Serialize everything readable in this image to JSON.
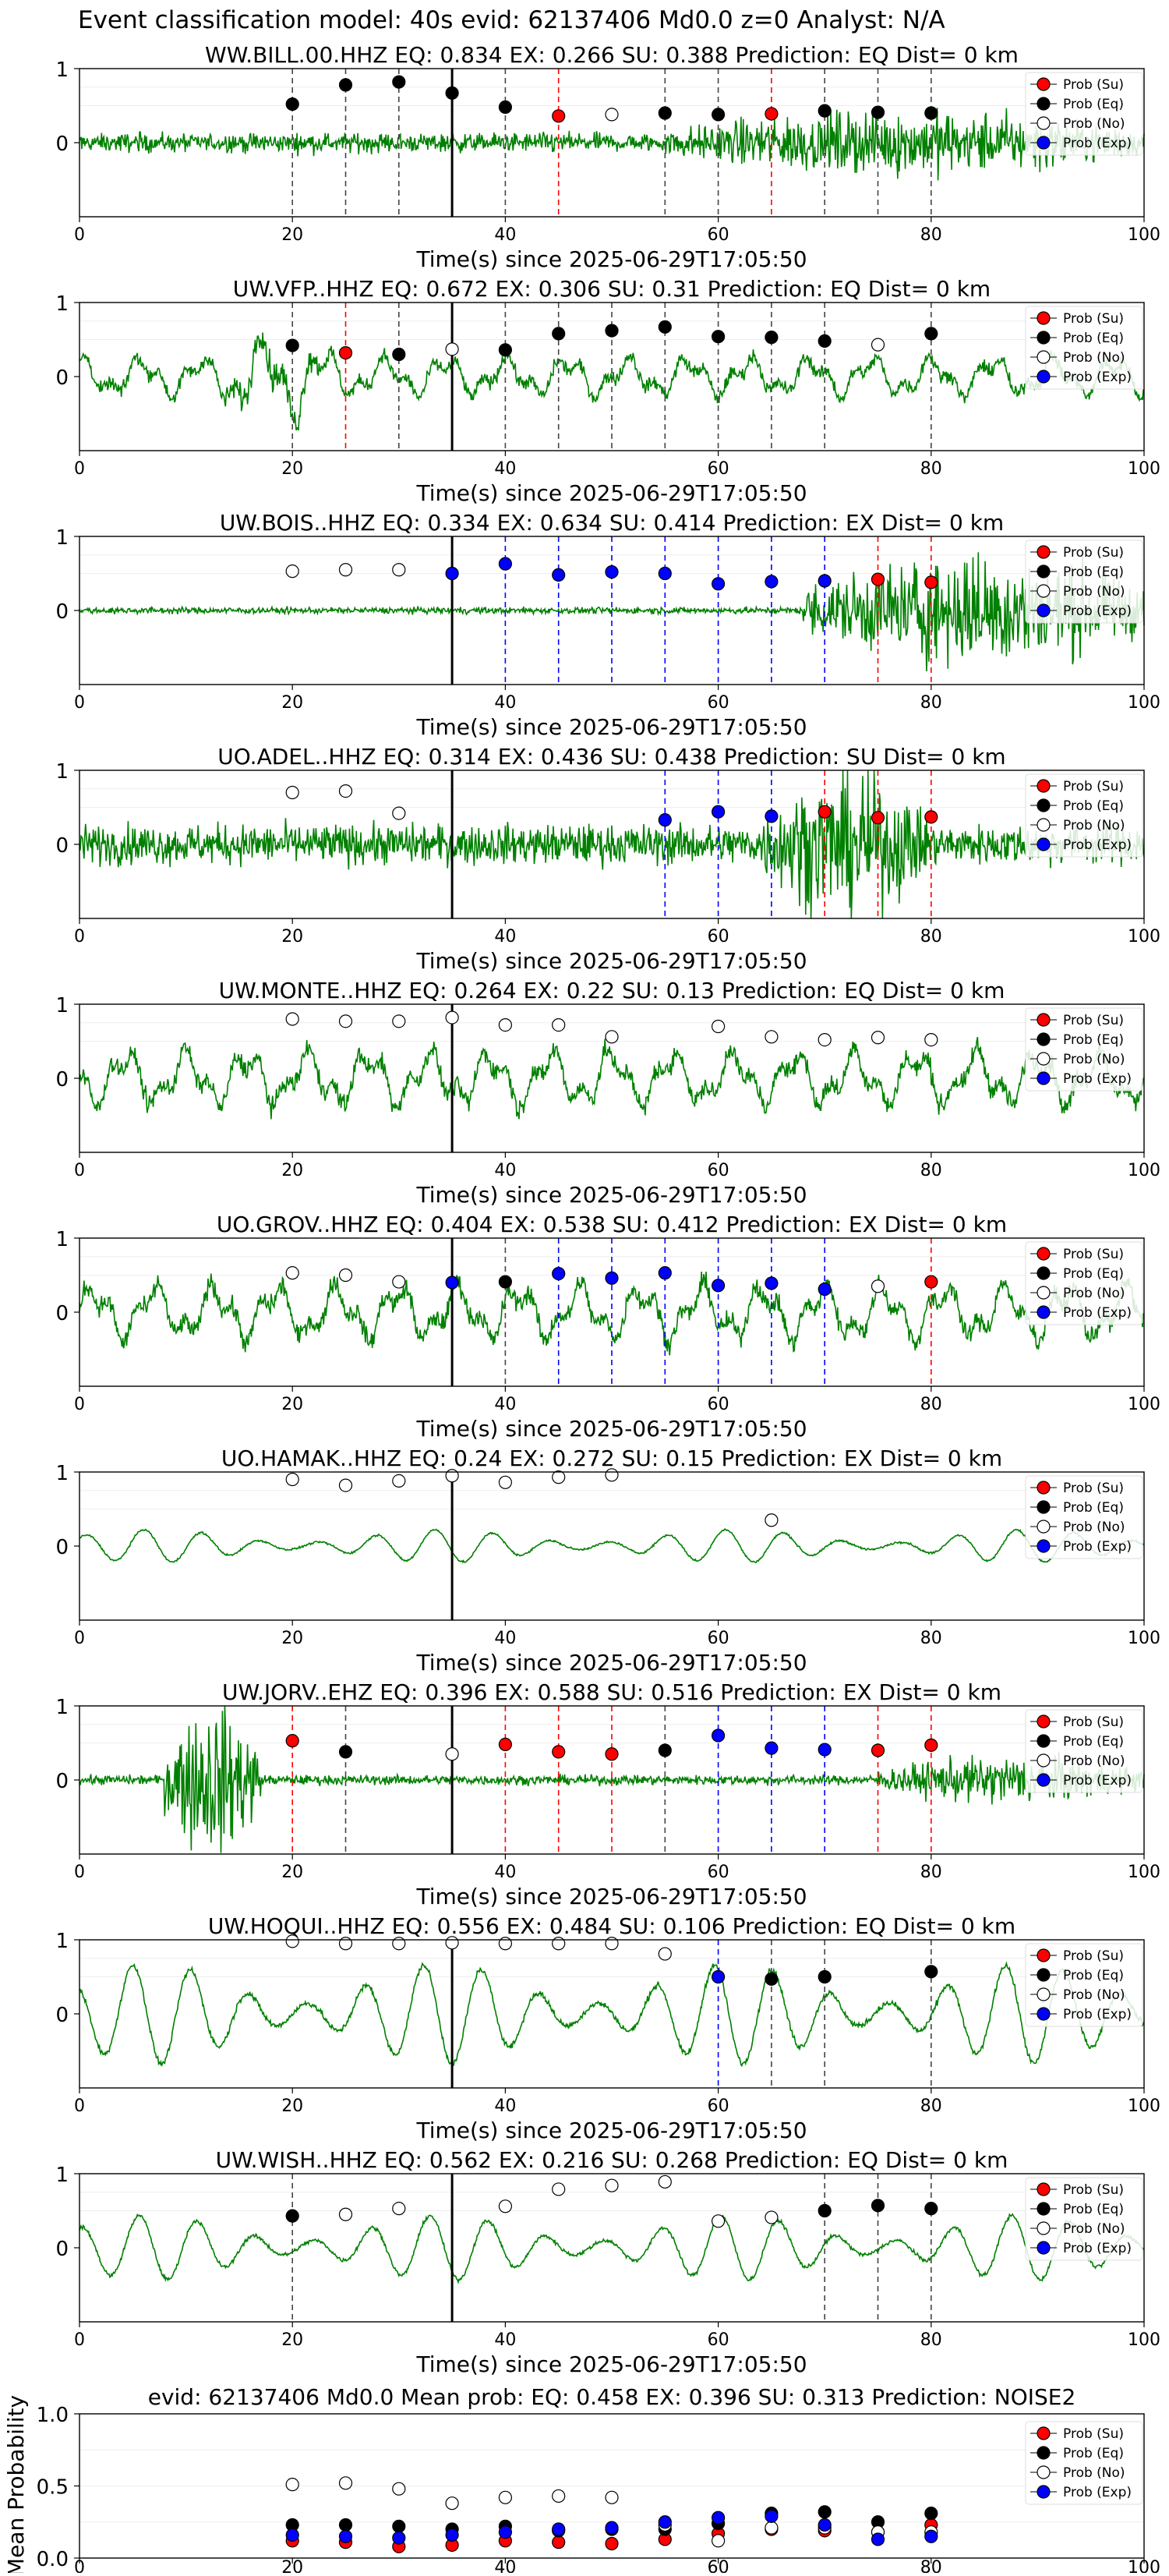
{
  "figure": {
    "suptitle": "Event classification model: 40s evid: 62137406 Md0.0 z=0 Analyst: N/A",
    "xlabel": "Time(s) since 2025-06-29T17:05:50",
    "legend": [
      "Prob (Su)",
      "Prob (Eq)",
      "Prob (No)",
      "Prob (Exp)"
    ],
    "colors": {
      "su": "#ff0000",
      "eq": "#000000",
      "no": "#ffffff",
      "exp": "#0000ff",
      "wave": "#008000",
      "su_line": "#ff0000",
      "eq_line": "#444444",
      "exp_line": "#0000ff"
    }
  },
  "chart_data": [
    {
      "type": "line",
      "station": "WW.BILL.00.HHZ",
      "title": "WW.BILL.00.HHZ   EQ: 0.834  EX: 0.266  SU: 0.388   Prediction: EQ    Dist= 0 km",
      "xlim": [
        0,
        100
      ],
      "ylim": [
        -1,
        1
      ],
      "xticks": [
        0,
        20,
        40,
        60,
        80,
        100
      ],
      "yticks": [
        0,
        1
      ],
      "pick_time": 35,
      "wave": {
        "amp": 0.12,
        "burst": [
          [
            55,
            100,
            0.4
          ]
        ],
        "kind": "noise"
      },
      "points": [
        {
          "t": 20,
          "y": 0.52,
          "cls": "eq"
        },
        {
          "t": 25,
          "y": 0.78,
          "cls": "eq"
        },
        {
          "t": 30,
          "y": 0.82,
          "cls": "eq"
        },
        {
          "t": 35,
          "y": 0.67,
          "cls": "eq"
        },
        {
          "t": 40,
          "y": 0.48,
          "cls": "eq"
        },
        {
          "t": 45,
          "y": 0.36,
          "cls": "su"
        },
        {
          "t": 50,
          "y": 0.38,
          "cls": "no"
        },
        {
          "t": 55,
          "y": 0.4,
          "cls": "eq"
        },
        {
          "t": 60,
          "y": 0.38,
          "cls": "eq"
        },
        {
          "t": 65,
          "y": 0.39,
          "cls": "su"
        },
        {
          "t": 70,
          "y": 0.43,
          "cls": "eq"
        },
        {
          "t": 75,
          "y": 0.41,
          "cls": "eq"
        },
        {
          "t": 80,
          "y": 0.4,
          "cls": "eq"
        }
      ]
    },
    {
      "type": "line",
      "station": "UW.VFP..HHZ",
      "title": "UW.VFP..HHZ   EQ: 0.672  EX: 0.306  SU: 0.31   Prediction: EQ    Dist= 0 km",
      "xlim": [
        0,
        100
      ],
      "ylim": [
        -1,
        1
      ],
      "xticks": [
        0,
        20,
        40,
        60,
        80,
        100
      ],
      "yticks": [
        0,
        1
      ],
      "pick_time": 35,
      "wave": {
        "amp": 0.35,
        "burst": [
          [
            12,
            25,
            0.8
          ]
        ],
        "kind": "osc"
      },
      "points": [
        {
          "t": 20,
          "y": 0.42,
          "cls": "eq"
        },
        {
          "t": 25,
          "y": 0.32,
          "cls": "su"
        },
        {
          "t": 30,
          "y": 0.3,
          "cls": "eq"
        },
        {
          "t": 35,
          "y": 0.37,
          "cls": "no"
        },
        {
          "t": 40,
          "y": 0.36,
          "cls": "eq"
        },
        {
          "t": 45,
          "y": 0.58,
          "cls": "eq"
        },
        {
          "t": 50,
          "y": 0.62,
          "cls": "eq"
        },
        {
          "t": 55,
          "y": 0.67,
          "cls": "eq"
        },
        {
          "t": 60,
          "y": 0.54,
          "cls": "eq"
        },
        {
          "t": 65,
          "y": 0.53,
          "cls": "eq"
        },
        {
          "t": 70,
          "y": 0.48,
          "cls": "eq"
        },
        {
          "t": 75,
          "y": 0.43,
          "cls": "no"
        },
        {
          "t": 80,
          "y": 0.58,
          "cls": "eq"
        }
      ]
    },
    {
      "type": "line",
      "station": "UW.BOIS..HHZ",
      "title": "UW.BOIS..HHZ   EQ: 0.334  EX: 0.634  SU: 0.414   Prediction: EX",
      "dist_label": "Dist= 0 km",
      "xlim": [
        0,
        100
      ],
      "ylim": [
        -1,
        1
      ],
      "xticks": [
        0,
        20,
        40,
        60,
        80,
        100
      ],
      "yticks": [
        0,
        1
      ],
      "pick_time": 35,
      "wave": {
        "amp": 0.04,
        "burst": [
          [
            68,
            100,
            0.7
          ]
        ],
        "kind": "noise"
      },
      "points": [
        {
          "t": 20,
          "y": 0.53,
          "cls": "no"
        },
        {
          "t": 25,
          "y": 0.55,
          "cls": "no"
        },
        {
          "t": 30,
          "y": 0.55,
          "cls": "no"
        },
        {
          "t": 35,
          "y": 0.5,
          "cls": "exp"
        },
        {
          "t": 40,
          "y": 0.63,
          "cls": "exp"
        },
        {
          "t": 45,
          "y": 0.48,
          "cls": "exp"
        },
        {
          "t": 50,
          "y": 0.52,
          "cls": "exp"
        },
        {
          "t": 55,
          "y": 0.5,
          "cls": "exp"
        },
        {
          "t": 60,
          "y": 0.36,
          "cls": "exp"
        },
        {
          "t": 65,
          "y": 0.39,
          "cls": "exp"
        },
        {
          "t": 70,
          "y": 0.4,
          "cls": "exp"
        },
        {
          "t": 75,
          "y": 0.42,
          "cls": "su"
        },
        {
          "t": 80,
          "y": 0.38,
          "cls": "su"
        }
      ]
    },
    {
      "type": "line",
      "station": "UO.ADEL..HHZ",
      "title": "UO.ADEL..HHZ   EQ: 0.314  EX: 0.436  SU: 0.438   Prediction: SU    Dist= 0 km",
      "xlim": [
        0,
        100
      ],
      "ylim": [
        -1,
        1
      ],
      "xticks": [
        0,
        20,
        40,
        60,
        80,
        100
      ],
      "yticks": [
        0,
        1
      ],
      "pick_time": 35,
      "wave": {
        "amp": 0.25,
        "burst": [
          [
            64,
            80,
            0.9
          ]
        ],
        "kind": "noise"
      },
      "points": [
        {
          "t": 20,
          "y": 0.7,
          "cls": "no"
        },
        {
          "t": 25,
          "y": 0.72,
          "cls": "no"
        },
        {
          "t": 30,
          "y": 0.42,
          "cls": "no"
        },
        {
          "t": 55,
          "y": 0.33,
          "cls": "exp"
        },
        {
          "t": 60,
          "y": 0.44,
          "cls": "exp"
        },
        {
          "t": 65,
          "y": 0.38,
          "cls": "exp"
        },
        {
          "t": 70,
          "y": 0.44,
          "cls": "su"
        },
        {
          "t": 75,
          "y": 0.36,
          "cls": "su"
        },
        {
          "t": 80,
          "y": 0.37,
          "cls": "su"
        }
      ]
    },
    {
      "type": "line",
      "station": "UW.MONTE..HHZ",
      "title": "UW.MONTE..HHZ   EQ: 0.264  EX: 0.22  SU: 0.13   Prediction: EQ    Dist= 0 km",
      "xlim": [
        0,
        100
      ],
      "ylim": [
        -1,
        1
      ],
      "xticks": [
        0,
        20,
        40,
        60,
        80,
        100
      ],
      "yticks": [
        0,
        1
      ],
      "pick_time": 35,
      "wave": {
        "amp": 0.5,
        "burst": [],
        "kind": "osc"
      },
      "points": [
        {
          "t": 20,
          "y": 0.8,
          "cls": "no"
        },
        {
          "t": 25,
          "y": 0.77,
          "cls": "no"
        },
        {
          "t": 30,
          "y": 0.77,
          "cls": "no"
        },
        {
          "t": 35,
          "y": 0.82,
          "cls": "no"
        },
        {
          "t": 40,
          "y": 0.72,
          "cls": "no"
        },
        {
          "t": 45,
          "y": 0.72,
          "cls": "no"
        },
        {
          "t": 50,
          "y": 0.56,
          "cls": "no"
        },
        {
          "t": 60,
          "y": 0.7,
          "cls": "no"
        },
        {
          "t": 65,
          "y": 0.56,
          "cls": "no"
        },
        {
          "t": 70,
          "y": 0.52,
          "cls": "no"
        },
        {
          "t": 75,
          "y": 0.55,
          "cls": "no"
        },
        {
          "t": 80,
          "y": 0.52,
          "cls": "no"
        }
      ]
    },
    {
      "type": "line",
      "station": "UO.GROV..HHZ",
      "title": "UO.GROV..HHZ   EQ: 0.404  EX: 0.538  SU: 0.412   Prediction: EX    Dist= 0 km",
      "xlim": [
        0,
        100
      ],
      "ylim": [
        -1,
        1
      ],
      "xticks": [
        0,
        20,
        40,
        60,
        80,
        100
      ],
      "yticks": [
        0,
        1
      ],
      "pick_time": 35,
      "wave": {
        "amp": 0.5,
        "burst": [],
        "kind": "osc"
      },
      "points": [
        {
          "t": 20,
          "y": 0.53,
          "cls": "no"
        },
        {
          "t": 25,
          "y": 0.5,
          "cls": "no"
        },
        {
          "t": 30,
          "y": 0.41,
          "cls": "no"
        },
        {
          "t": 35,
          "y": 0.4,
          "cls": "exp"
        },
        {
          "t": 40,
          "y": 0.41,
          "cls": "eq"
        },
        {
          "t": 45,
          "y": 0.52,
          "cls": "exp"
        },
        {
          "t": 50,
          "y": 0.46,
          "cls": "exp"
        },
        {
          "t": 55,
          "y": 0.53,
          "cls": "exp"
        },
        {
          "t": 60,
          "y": 0.36,
          "cls": "exp"
        },
        {
          "t": 65,
          "y": 0.39,
          "cls": "exp"
        },
        {
          "t": 70,
          "y": 0.31,
          "cls": "exp"
        },
        {
          "t": 75,
          "y": 0.35,
          "cls": "no"
        },
        {
          "t": 80,
          "y": 0.41,
          "cls": "su"
        }
      ]
    },
    {
      "type": "line",
      "station": "UO.HAMAK..HHZ",
      "title": "UO.HAMAK..HHZ   EQ: 0.24  EX: 0.272  SU: 0.15   Prediction: EX    Dist= 0 km",
      "xlim": [
        0,
        100
      ],
      "ylim": [
        -1,
        1
      ],
      "xticks": [
        0,
        20,
        40,
        60,
        80,
        100
      ],
      "yticks": [
        0,
        1
      ],
      "pick_time": 35,
      "wave": {
        "amp": 0.28,
        "burst": [],
        "kind": "smooth"
      },
      "points": [
        {
          "t": 20,
          "y": 0.9,
          "cls": "no"
        },
        {
          "t": 25,
          "y": 0.82,
          "cls": "no"
        },
        {
          "t": 30,
          "y": 0.88,
          "cls": "no"
        },
        {
          "t": 35,
          "y": 0.95,
          "cls": "no"
        },
        {
          "t": 40,
          "y": 0.86,
          "cls": "no"
        },
        {
          "t": 45,
          "y": 0.93,
          "cls": "no"
        },
        {
          "t": 50,
          "y": 0.96,
          "cls": "no"
        },
        {
          "t": 65,
          "y": 0.35,
          "cls": "no"
        }
      ]
    },
    {
      "type": "line",
      "station": "UW.JORV..EHZ",
      "title": "UW.JORV..EHZ   EQ: 0.396  EX: 0.588  SU: 0.516   Prediction: EX    Dist= 0 km",
      "xlim": [
        0,
        100
      ],
      "ylim": [
        -1,
        1
      ],
      "xticks": [
        0,
        20,
        40,
        60,
        80,
        100
      ],
      "yticks": [
        0,
        1
      ],
      "pick_time": 35,
      "wave": {
        "amp": 0.06,
        "burst": [
          [
            8,
            17,
            0.95
          ],
          [
            75,
            100,
            0.3
          ]
        ],
        "kind": "noise"
      },
      "points": [
        {
          "t": 20,
          "y": 0.53,
          "cls": "su"
        },
        {
          "t": 25,
          "y": 0.38,
          "cls": "eq"
        },
        {
          "t": 35,
          "y": 0.35,
          "cls": "no"
        },
        {
          "t": 40,
          "y": 0.48,
          "cls": "su"
        },
        {
          "t": 45,
          "y": 0.38,
          "cls": "su"
        },
        {
          "t": 50,
          "y": 0.35,
          "cls": "su"
        },
        {
          "t": 55,
          "y": 0.4,
          "cls": "eq"
        },
        {
          "t": 60,
          "y": 0.6,
          "cls": "exp"
        },
        {
          "t": 65,
          "y": 0.43,
          "cls": "exp"
        },
        {
          "t": 70,
          "y": 0.41,
          "cls": "exp"
        },
        {
          "t": 75,
          "y": 0.4,
          "cls": "su"
        },
        {
          "t": 80,
          "y": 0.47,
          "cls": "su"
        }
      ]
    },
    {
      "type": "line",
      "station": "UW.HOQUI..HHZ",
      "title": "UW.HOQUI..HHZ   EQ: 0.556  EX: 0.484  SU: 0.106   Prediction: EQ    Dist= 0 km",
      "xlim": [
        0,
        100
      ],
      "ylim": [
        -1,
        1
      ],
      "xticks": [
        0,
        20,
        40,
        60,
        80,
        100
      ],
      "yticks": [
        0,
        1
      ],
      "pick_time": 35,
      "wave": {
        "amp": 0.85,
        "burst": [],
        "kind": "smooth"
      },
      "points": [
        {
          "t": 20,
          "y": 0.98,
          "cls": "no"
        },
        {
          "t": 25,
          "y": 0.95,
          "cls": "no"
        },
        {
          "t": 30,
          "y": 0.95,
          "cls": "no"
        },
        {
          "t": 35,
          "y": 0.96,
          "cls": "no"
        },
        {
          "t": 40,
          "y": 0.95,
          "cls": "no"
        },
        {
          "t": 45,
          "y": 0.95,
          "cls": "no"
        },
        {
          "t": 50,
          "y": 0.95,
          "cls": "no"
        },
        {
          "t": 55,
          "y": 0.81,
          "cls": "no"
        },
        {
          "t": 60,
          "y": 0.5,
          "cls": "exp"
        },
        {
          "t": 65,
          "y": 0.47,
          "cls": "eq"
        },
        {
          "t": 70,
          "y": 0.5,
          "cls": "eq"
        },
        {
          "t": 80,
          "y": 0.57,
          "cls": "eq"
        }
      ]
    },
    {
      "type": "line",
      "station": "UW.WISH..HHZ",
      "title": "UW.WISH..HHZ   EQ: 0.562  EX: 0.216  SU: 0.268   Prediction: EQ    Dist= 0 km",
      "xlim": [
        0,
        100
      ],
      "ylim": [
        -1,
        1
      ],
      "xticks": [
        0,
        20,
        40,
        60,
        80,
        100
      ],
      "yticks": [
        0,
        1
      ],
      "pick_time": 35,
      "wave": {
        "amp": 0.55,
        "burst": [],
        "kind": "smooth"
      },
      "points": [
        {
          "t": 20,
          "y": 0.43,
          "cls": "eq"
        },
        {
          "t": 25,
          "y": 0.45,
          "cls": "no"
        },
        {
          "t": 30,
          "y": 0.53,
          "cls": "no"
        },
        {
          "t": 40,
          "y": 0.56,
          "cls": "no"
        },
        {
          "t": 45,
          "y": 0.79,
          "cls": "no"
        },
        {
          "t": 50,
          "y": 0.84,
          "cls": "no"
        },
        {
          "t": 55,
          "y": 0.89,
          "cls": "no"
        },
        {
          "t": 60,
          "y": 0.36,
          "cls": "no"
        },
        {
          "t": 65,
          "y": 0.41,
          "cls": "no"
        },
        {
          "t": 70,
          "y": 0.5,
          "cls": "eq"
        },
        {
          "t": 75,
          "y": 0.57,
          "cls": "eq"
        },
        {
          "t": 80,
          "y": 0.53,
          "cls": "eq"
        }
      ]
    },
    {
      "type": "scatter",
      "title": "evid: 62137406  Md0.0   Mean prob:   EQ: 0.458  EX: 0.396  SU: 0.313   Prediction: NOISE2",
      "ylabel": "Mean Probability",
      "xlim": [
        0,
        100
      ],
      "ylim": [
        0,
        1
      ],
      "xticks": [
        0,
        20,
        40,
        60,
        80,
        100
      ],
      "yticks": [
        0.0,
        0.5,
        1.0
      ],
      "ytick_labels": [
        "0.0",
        "0.5",
        "1.0"
      ],
      "x": [
        20,
        25,
        30,
        35,
        40,
        45,
        50,
        55,
        60,
        65,
        70,
        75,
        80
      ],
      "series": [
        {
          "name": "Prob (Su)",
          "cls": "su",
          "values": [
            0.12,
            0.11,
            0.08,
            0.09,
            0.12,
            0.11,
            0.1,
            0.13,
            0.17,
            0.2,
            0.19,
            0.18,
            0.23
          ]
        },
        {
          "name": "Prob (Eq)",
          "cls": "eq",
          "values": [
            0.23,
            0.23,
            0.22,
            0.2,
            0.22,
            0.19,
            0.2,
            0.2,
            0.24,
            0.31,
            0.32,
            0.25,
            0.31
          ]
        },
        {
          "name": "Prob (No)",
          "cls": "no",
          "values": [
            0.51,
            0.52,
            0.48,
            0.38,
            0.42,
            0.43,
            0.42,
            0.23,
            0.12,
            0.21,
            0.21,
            0.18,
            0.18
          ]
        },
        {
          "name": "Prob (Exp)",
          "cls": "exp",
          "values": [
            0.16,
            0.15,
            0.14,
            0.16,
            0.18,
            0.2,
            0.21,
            0.25,
            0.28,
            0.29,
            0.23,
            0.13,
            0.15
          ]
        }
      ]
    }
  ]
}
